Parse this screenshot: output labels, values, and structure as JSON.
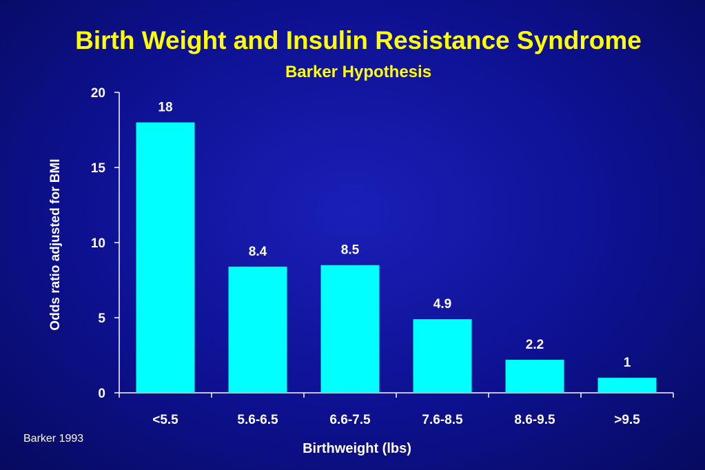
{
  "slide": {
    "title": "Birth Weight and Insulin Resistance Syndrome",
    "subtitle": "Barker Hypothesis",
    "source": "Barker 1993"
  },
  "colors": {
    "bar": "#00ffff",
    "title": "#ffff00",
    "text": "#ffffff",
    "axis": "#ffffff"
  },
  "chart_data": {
    "type": "bar",
    "title": "Birth Weight and Insulin Resistance Syndrome",
    "subtitle": "Barker Hypothesis",
    "categories": [
      "<5.5",
      "5.6-6.5",
      "6.6-7.5",
      "7.6-8.5",
      "8.6-9.5",
      ">9.5"
    ],
    "values": [
      18,
      8.4,
      8.5,
      4.9,
      2.2,
      1
    ],
    "data_labels": [
      "18",
      "8.4",
      "8.5",
      "4.9",
      "2.2",
      "1"
    ],
    "xlabel": "Birthweight (lbs)",
    "ylabel": "Odds ratio adjusted for BMI",
    "ylim": [
      0,
      20
    ],
    "yticks": [
      0,
      5,
      10,
      15,
      20
    ],
    "grid": false,
    "legend": "none"
  }
}
